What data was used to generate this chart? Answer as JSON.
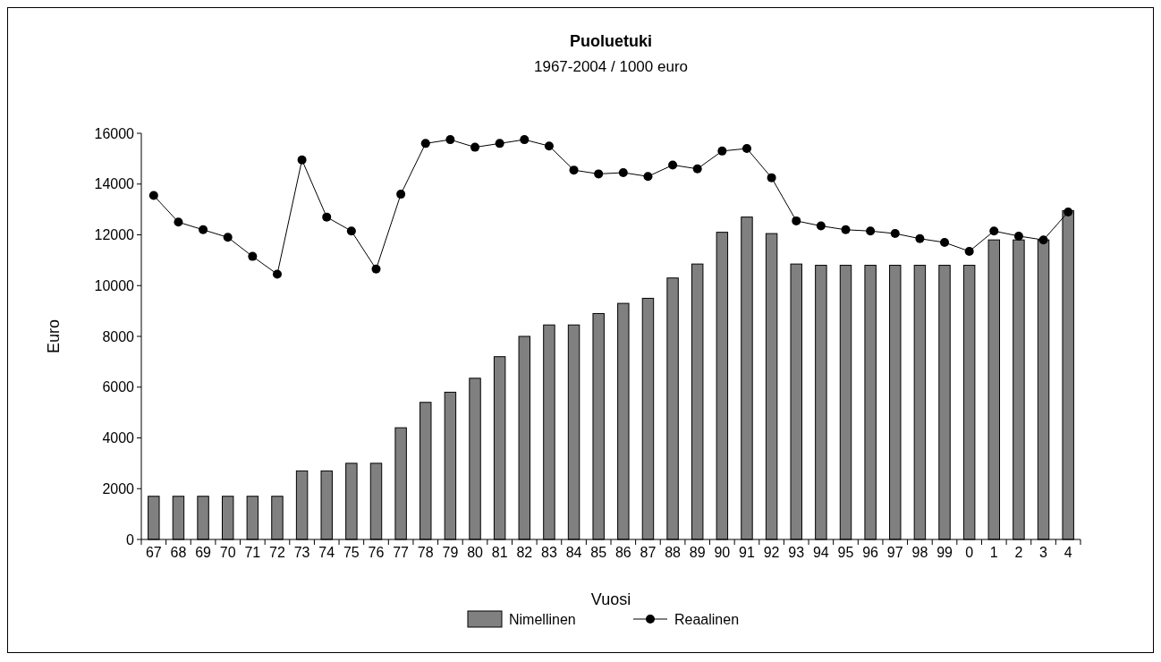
{
  "chart_data": {
    "type": "bar",
    "title": "Puoluetuki",
    "subtitle": "1967-2004 / 1000 euro",
    "xlabel": "Vuosi",
    "ylabel": "Euro",
    "categories": [
      "67",
      "68",
      "69",
      "70",
      "71",
      "72",
      "73",
      "74",
      "75",
      "76",
      "77",
      "78",
      "79",
      "80",
      "81",
      "82",
      "83",
      "84",
      "85",
      "86",
      "87",
      "88",
      "89",
      "90",
      "91",
      "92",
      "93",
      "94",
      "95",
      "96",
      "97",
      "98",
      "99",
      "0",
      "1",
      "2",
      "3",
      "4"
    ],
    "series": [
      {
        "name": "Nimellinen",
        "color": "#808080",
        "values": [
          1700,
          1700,
          1700,
          1700,
          1700,
          1700,
          2700,
          2700,
          3000,
          3000,
          4400,
          5400,
          5800,
          6350,
          7200,
          8000,
          8450,
          8450,
          8900,
          9300,
          9500,
          10300,
          10850,
          12100,
          12700,
          12050,
          10850,
          10800,
          10800,
          10800,
          10800,
          10800,
          10800,
          10800,
          11800,
          11800,
          11800,
          12950
        ]
      },
      {
        "name": "Reaalinen",
        "type": "line",
        "color": "#000000",
        "marker": "circle",
        "values": [
          13550,
          12500,
          12200,
          11900,
          11150,
          10450,
          14950,
          12700,
          12150,
          10650,
          13600,
          15600,
          15750,
          15450,
          15600,
          15750,
          15500,
          14550,
          14400,
          14450,
          14300,
          14750,
          14600,
          15300,
          15400,
          14250,
          12550,
          12350,
          12200,
          12150,
          12050,
          11850,
          11700,
          11350,
          12150,
          11950,
          11800,
          12900
        ]
      }
    ],
    "ylim": [
      0,
      16000
    ],
    "yticks": [
      0,
      2000,
      4000,
      6000,
      8000,
      10000,
      12000,
      14000,
      16000
    ],
    "grid": false,
    "legend": "bottom"
  }
}
